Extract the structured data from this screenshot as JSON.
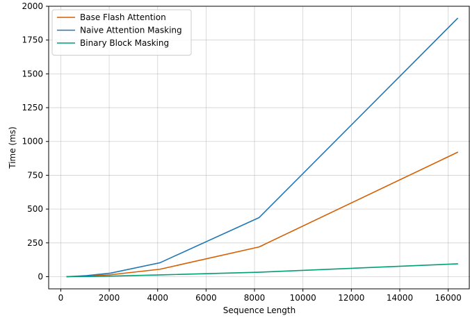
{
  "chart_data": {
    "type": "line",
    "title": "",
    "xlabel": "Sequence Length",
    "ylabel": "Time (ms)",
    "xlim": [
      -500,
      16900
    ],
    "ylim": [
      -90,
      2000
    ],
    "xticks": [
      0,
      2000,
      4000,
      6000,
      8000,
      10000,
      12000,
      14000,
      16000
    ],
    "yticks": [
      0,
      250,
      500,
      750,
      1000,
      1250,
      1500,
      1750,
      2000
    ],
    "grid": true,
    "legend_position": "top-left",
    "x": [
      256,
      512,
      1024,
      2048,
      4096,
      8192,
      16384
    ],
    "series": [
      {
        "name": "Base Flash Attention",
        "color": "#d55e00",
        "values": [
          0.5,
          1.5,
          4,
          14,
          55,
          220,
          920
        ]
      },
      {
        "name": "Naive Attention Masking",
        "color": "#1f77b4",
        "values": [
          0.5,
          2,
          7,
          26,
          103,
          437,
          1910
        ]
      },
      {
        "name": "Binary Block Masking",
        "color": "#009e73",
        "values": [
          0.3,
          0.6,
          1.3,
          4,
          13,
          33,
          95
        ]
      }
    ]
  }
}
